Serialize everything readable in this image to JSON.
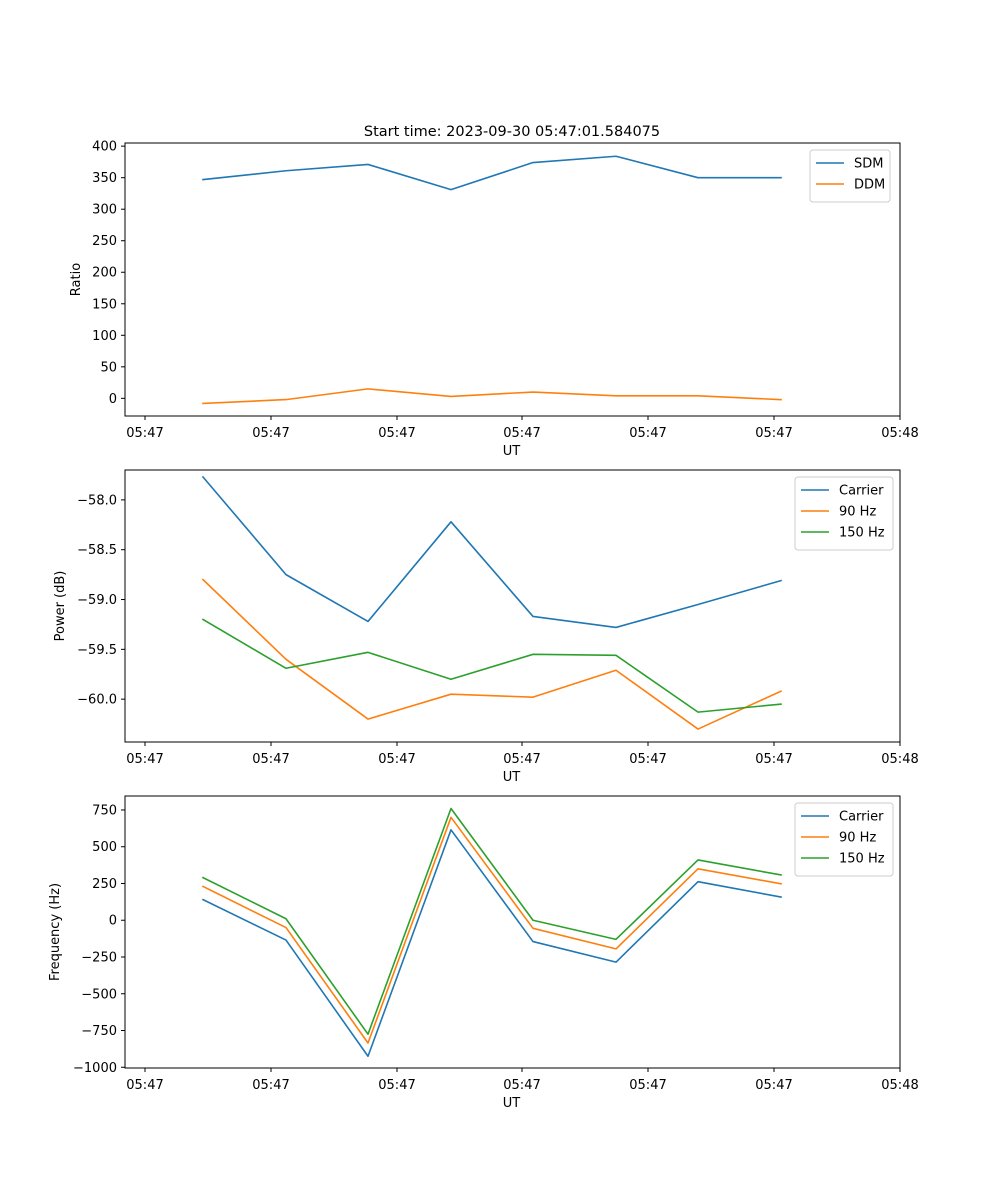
{
  "figure": {
    "title": "Start time: 2023-09-30 05:47:01.584075"
  },
  "colors": {
    "blue": "#1f77b4",
    "orange": "#ff7f0e",
    "green": "#2ca02c",
    "axis": "#000000",
    "legend_border": "#cccccc"
  },
  "chart_data": [
    {
      "type": "line",
      "xlabel": "UT",
      "ylabel": "Ratio",
      "x_ticks": [
        "05:47",
        "05:47",
        "05:47",
        "05:47",
        "05:47",
        "05:47",
        "05:47"
      ],
      "x_tick_last": "05:48",
      "y_ticks": [
        0,
        50,
        100,
        150,
        200,
        250,
        300,
        350,
        400
      ],
      "ylim": [
        -28,
        405
      ],
      "legend_position": "top-right",
      "series": [
        {
          "name": "SDM",
          "color_key": "blue",
          "values": [
            347,
            361,
            371,
            331,
            374,
            384,
            350,
            350
          ]
        },
        {
          "name": "DDM",
          "color_key": "orange",
          "values": [
            -8,
            -2,
            15,
            3,
            10,
            4,
            4,
            -2
          ]
        }
      ]
    },
    {
      "type": "line",
      "xlabel": "UT",
      "ylabel": "Power (dB)",
      "x_ticks": [
        "05:47",
        "05:47",
        "05:47",
        "05:47",
        "05:47",
        "05:47",
        "05:47"
      ],
      "x_tick_last": "05:48",
      "y_ticks": [
        -60.0,
        -59.5,
        -59.0,
        -58.5,
        -58.0
      ],
      "y_tick_labels": [
        "−60.0",
        "−59.5",
        "−59.0",
        "−58.5",
        "−58.0"
      ],
      "ylim": [
        -60.43,
        -57.7
      ],
      "legend_position": "top-right",
      "series": [
        {
          "name": "Carrier",
          "color_key": "blue",
          "values": [
            -57.77,
            -58.75,
            -59.22,
            -58.22,
            -59.17,
            -59.28,
            -59.05,
            -58.81
          ]
        },
        {
          "name": "90 Hz",
          "color_key": "orange",
          "values": [
            -58.8,
            -59.6,
            -60.2,
            -59.95,
            -59.98,
            -59.71,
            -60.3,
            -59.92
          ]
        },
        {
          "name": "150 Hz",
          "color_key": "green",
          "values": [
            -59.2,
            -59.69,
            -59.53,
            -59.8,
            -59.55,
            -59.56,
            -60.13,
            -60.05
          ]
        }
      ]
    },
    {
      "type": "line",
      "xlabel": "UT",
      "ylabel": "Frequency (Hz)",
      "x_ticks": [
        "05:47",
        "05:47",
        "05:47",
        "05:47",
        "05:47",
        "05:47",
        "05:47"
      ],
      "x_tick_last": "05:48",
      "y_ticks": [
        -1000,
        -750,
        -500,
        -250,
        0,
        250,
        500,
        750
      ],
      "y_tick_labels": [
        "−1000",
        "−750",
        "−500",
        "−250",
        "0",
        "250",
        "500",
        "750"
      ],
      "ylim": [
        -1005,
        845
      ],
      "legend_position": "top-right",
      "series": [
        {
          "name": "Carrier",
          "color_key": "blue",
          "values": [
            140,
            -135,
            -925,
            615,
            -145,
            -285,
            262,
            158
          ]
        },
        {
          "name": "90 Hz",
          "color_key": "orange",
          "values": [
            230,
            -50,
            -835,
            700,
            -55,
            -195,
            350,
            248
          ]
        },
        {
          "name": "150 Hz",
          "color_key": "green",
          "values": [
            290,
            10,
            -775,
            760,
            0,
            -130,
            410,
            308
          ]
        }
      ]
    }
  ]
}
